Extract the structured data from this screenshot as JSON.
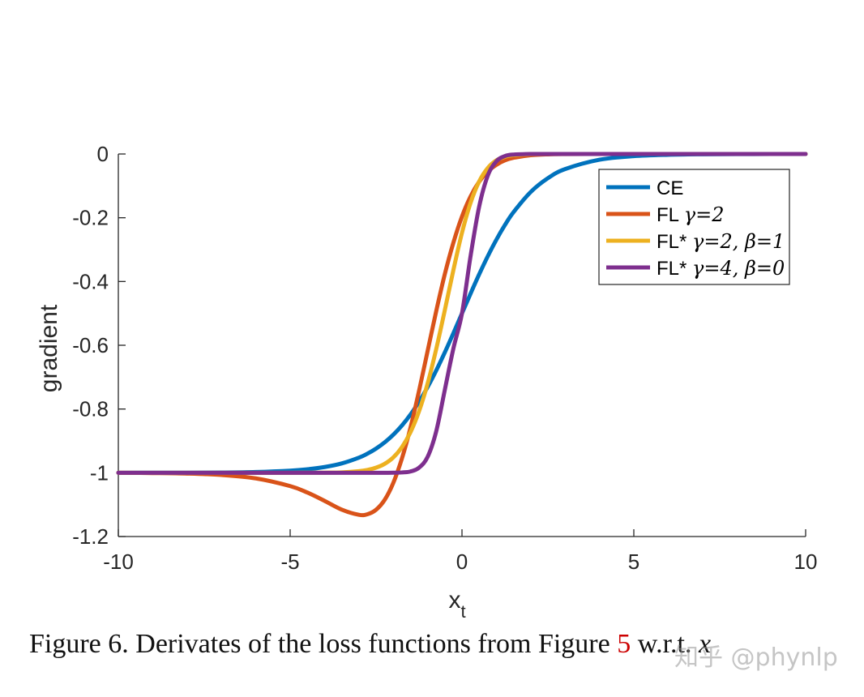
{
  "chart_data": {
    "type": "line",
    "title": "",
    "xlabel": "x",
    "xlabel_sub": "t",
    "ylabel": "gradient",
    "xlim": [
      -10,
      10
    ],
    "ylim": [
      -1.2,
      0
    ],
    "xticks": [
      -10,
      -5,
      0,
      5,
      10
    ],
    "xtick_labels": [
      "-10",
      "-5",
      "0",
      "5",
      "10"
    ],
    "yticks": [
      0,
      -0.2,
      -0.4,
      -0.6,
      -0.8,
      -1,
      -1.2
    ],
    "ytick_labels": [
      "0",
      "-0.2",
      "-0.4",
      "-0.6",
      "-0.8",
      "-1",
      "-1.2"
    ],
    "grid": false,
    "legend_position": "top-right",
    "x": [
      -10,
      -9,
      -8,
      -7,
      -6,
      -5,
      -4.5,
      -4,
      -3.5,
      -3,
      -2.75,
      -2.5,
      -2.25,
      -2,
      -1.75,
      -1.5,
      -1.25,
      -1,
      -0.75,
      -0.5,
      -0.25,
      0,
      0.25,
      0.5,
      0.75,
      1,
      1.25,
      1.5,
      2,
      2.5,
      3,
      4,
      5,
      6,
      7,
      8,
      9,
      10
    ],
    "series": [
      {
        "name": "CE",
        "legend_prefix": "CE",
        "legend_math": "",
        "color": "#0072BD",
        "values": [
          -1.0,
          -0.9999,
          -0.9997,
          -0.9991,
          -0.9975,
          -0.9933,
          -0.989,
          -0.982,
          -0.9707,
          -0.9526,
          -0.9399,
          -0.9241,
          -0.9047,
          -0.8808,
          -0.852,
          -0.8176,
          -0.7773,
          -0.7311,
          -0.6792,
          -0.6225,
          -0.5622,
          -0.5,
          -0.4378,
          -0.3775,
          -0.3208,
          -0.2689,
          -0.2227,
          -0.1824,
          -0.1192,
          -0.0759,
          -0.0474,
          -0.018,
          -0.0067,
          -0.0025,
          -0.0009,
          -0.0003,
          -0.0001,
          0.0
        ]
      },
      {
        "name": "FL γ=2",
        "legend_prefix": "FL ",
        "legend_math": "γ=2",
        "color": "#D95319",
        "values": [
          -1.0,
          -1.0009,
          -1.0025,
          -1.0068,
          -1.0176,
          -1.0418,
          -1.062,
          -1.088,
          -1.1155,
          -1.1318,
          -1.13,
          -1.116,
          -1.085,
          -1.032,
          -0.956,
          -0.859,
          -0.743,
          -0.618,
          -0.493,
          -0.377,
          -0.278,
          -0.196,
          -0.133,
          -0.087,
          -0.055,
          -0.034,
          -0.02,
          -0.012,
          -0.004,
          -0.0012,
          -0.0004,
          0.0,
          0.0,
          0.0,
          0.0,
          0.0,
          0.0,
          0.0
        ]
      },
      {
        "name": "FL* γ=2, β=1",
        "legend_prefix": "FL* ",
        "legend_math": "γ=2, β=1",
        "color": "#EDB120",
        "values": [
          -1.0,
          -1.0,
          -1.0,
          -1.0,
          -1.0,
          -1.0,
          -0.9999,
          -0.9997,
          -0.9988,
          -0.995,
          -0.991,
          -0.984,
          -0.972,
          -0.952,
          -0.92,
          -0.873,
          -0.807,
          -0.72,
          -0.612,
          -0.49,
          -0.364,
          -0.247,
          -0.153,
          -0.086,
          -0.044,
          -0.02,
          -0.009,
          -0.004,
          -0.0005,
          0.0,
          0.0,
          0.0,
          0.0,
          0.0,
          0.0,
          0.0,
          0.0,
          0.0
        ]
      },
      {
        "name": "FL* γ=4, β=0",
        "legend_prefix": "FL* ",
        "legend_math": "γ=4, β=0",
        "color": "#7E2F8E",
        "values": [
          -1.0,
          -1.0,
          -1.0,
          -1.0,
          -1.0,
          -1.0,
          -1.0,
          -1.0,
          -1.0,
          -1.0,
          -1.0,
          -1.0,
          -1.0,
          -0.9998,
          -0.999,
          -0.996,
          -0.984,
          -0.95,
          -0.87,
          -0.74,
          -0.61,
          -0.5,
          -0.32,
          -0.165,
          -0.068,
          -0.023,
          -0.0065,
          -0.0018,
          0.0,
          0.0,
          0.0,
          0.0,
          0.0,
          0.0,
          0.0,
          0.0,
          0.0,
          0.0
        ]
      }
    ]
  },
  "caption": {
    "prefix": "Figure 6. Derivates of the loss functions from Figure ",
    "ref": "5",
    "suffix": " w.r.t. ",
    "math": "x"
  },
  "watermark": "知乎 @phynlp"
}
